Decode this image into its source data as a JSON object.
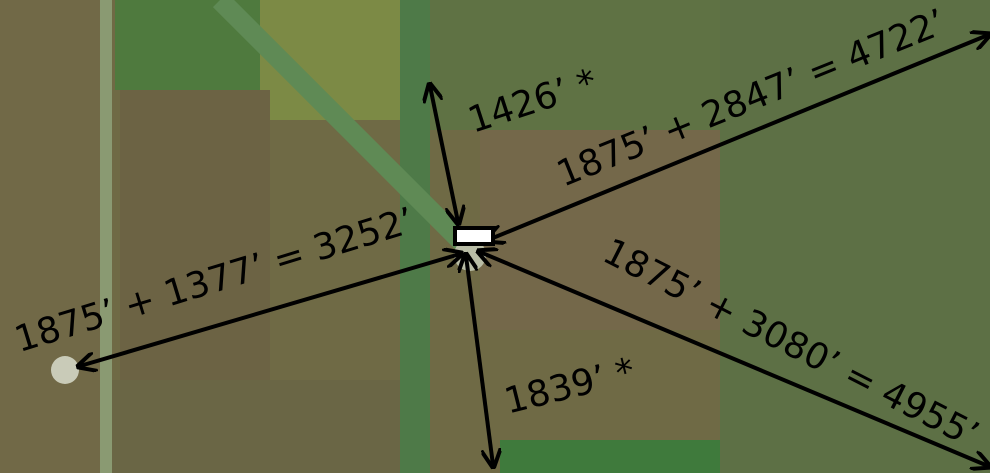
{
  "annotations": [
    {
      "label": "1426’ *"
    },
    {
      "label": "1875’ + 2847’ = 4722’"
    },
    {
      "label": "1875’ + 1377’ = 3252’"
    },
    {
      "label": "1875’ + 3080’ = 4955’"
    },
    {
      "label": "1839’ *"
    }
  ]
}
